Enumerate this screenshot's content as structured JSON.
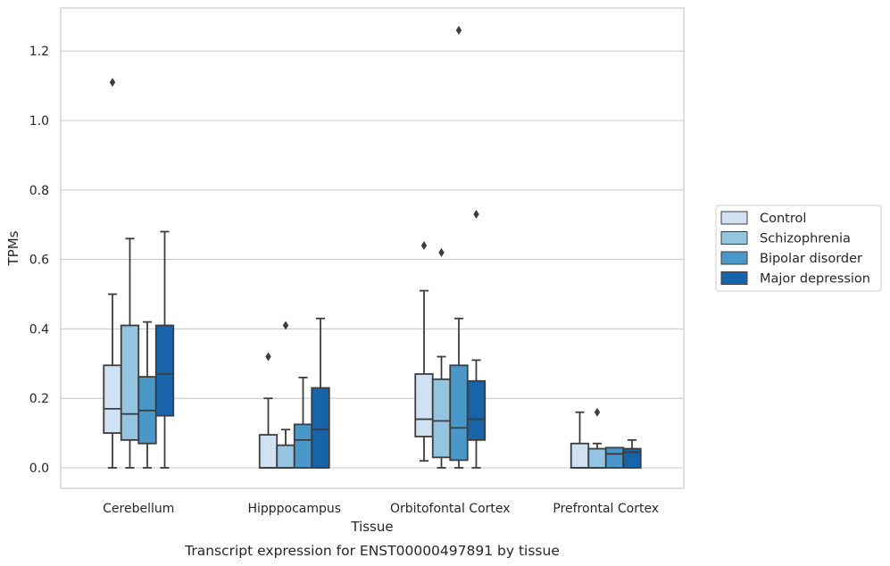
{
  "caption": "Transcript expression for ENST00000497891 by tissue",
  "chart_data": {
    "type": "box",
    "xlabel": "Tissue",
    "ylabel": "TPMs",
    "ylim": [
      -0.06,
      1.33
    ],
    "yticks": [
      "0.0",
      "0.2",
      "0.4",
      "0.6",
      "0.8",
      "1.0",
      "1.2"
    ],
    "grid": "horizontal",
    "legend_position": "right",
    "categories": [
      "Cerebellum",
      "Hipppocampus",
      "Orbitofontal Cortex",
      "Prefrontal Cortex"
    ],
    "series": [
      {
        "name": "Control",
        "color": "#d0e1f2",
        "boxes": [
          {
            "whislo": 0.0,
            "q1": 0.1,
            "med": 0.17,
            "q3": 0.295,
            "whishi": 0.5,
            "fliers": [
              1.11
            ]
          },
          {
            "whislo": 0.0,
            "q1": 0.0,
            "med": 0.0,
            "q3": 0.095,
            "whishi": 0.2,
            "fliers": [
              0.32
            ]
          },
          {
            "whislo": 0.02,
            "q1": 0.09,
            "med": 0.14,
            "q3": 0.27,
            "whishi": 0.51,
            "fliers": [
              0.64
            ]
          },
          {
            "whislo": 0.0,
            "q1": 0.0,
            "med": 0.0,
            "q3": 0.07,
            "whishi": 0.16,
            "fliers": []
          }
        ]
      },
      {
        "name": "Schizophrenia",
        "color": "#94c4df",
        "boxes": [
          {
            "whislo": 0.0,
            "q1": 0.08,
            "med": 0.155,
            "q3": 0.41,
            "whishi": 0.66,
            "fliers": []
          },
          {
            "whislo": 0.0,
            "q1": 0.0,
            "med": 0.0,
            "q3": 0.065,
            "whishi": 0.11,
            "fliers": [
              0.41
            ]
          },
          {
            "whislo": 0.0,
            "q1": 0.03,
            "med": 0.135,
            "q3": 0.255,
            "whishi": 0.32,
            "fliers": [
              0.62
            ]
          },
          {
            "whislo": 0.0,
            "q1": 0.0,
            "med": 0.0,
            "q3": 0.055,
            "whishi": 0.07,
            "fliers": [
              0.16
            ]
          }
        ]
      },
      {
        "name": "Bipolar disorder",
        "color": "#4a98c9",
        "boxes": [
          {
            "whislo": 0.0,
            "q1": 0.07,
            "med": 0.165,
            "q3": 0.262,
            "whishi": 0.42,
            "fliers": []
          },
          {
            "whislo": 0.0,
            "q1": 0.0,
            "med": 0.08,
            "q3": 0.125,
            "whishi": 0.26,
            "fliers": []
          },
          {
            "whislo": 0.0,
            "q1": 0.022,
            "med": 0.115,
            "q3": 0.295,
            "whishi": 0.43,
            "fliers": [
              1.26
            ]
          },
          {
            "whislo": 0.0,
            "q1": 0.0,
            "med": 0.04,
            "q3": 0.058,
            "whishi": 0.058,
            "fliers": []
          }
        ]
      },
      {
        "name": "Major depression",
        "color": "#1764ab",
        "boxes": [
          {
            "whislo": 0.0,
            "q1": 0.15,
            "med": 0.27,
            "q3": 0.41,
            "whishi": 0.68,
            "fliers": []
          },
          {
            "whislo": 0.0,
            "q1": 0.0,
            "med": 0.11,
            "q3": 0.23,
            "whishi": 0.43,
            "fliers": []
          },
          {
            "whislo": 0.0,
            "q1": 0.08,
            "med": 0.14,
            "q3": 0.25,
            "whishi": 0.31,
            "fliers": [
              0.73
            ]
          },
          {
            "whislo": 0.0,
            "q1": 0.0,
            "med": 0.045,
            "q3": 0.055,
            "whishi": 0.08,
            "fliers": []
          }
        ]
      }
    ]
  }
}
